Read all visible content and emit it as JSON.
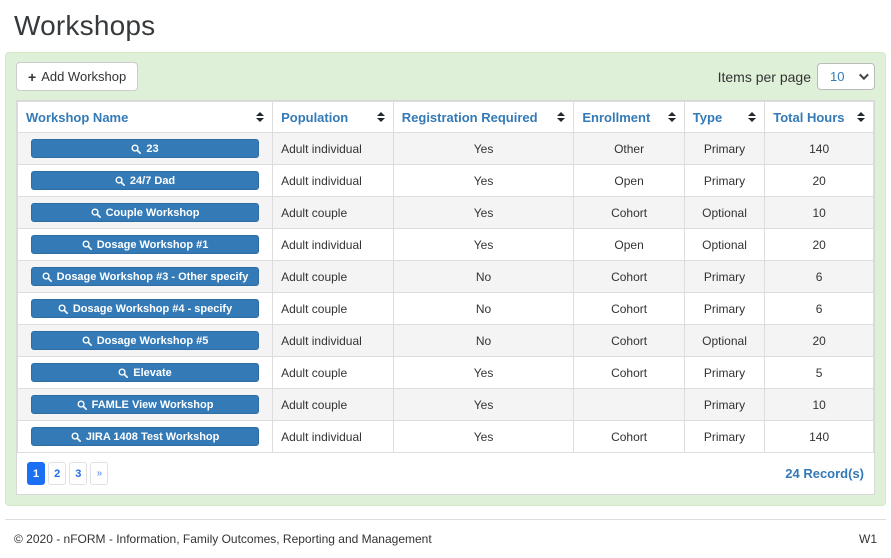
{
  "page": {
    "title": "Workshops"
  },
  "toolbar": {
    "add_button": {
      "icon": "+",
      "label": "Add Workshop"
    },
    "items_per_page": {
      "label": "Items per page",
      "selected": "10"
    }
  },
  "table": {
    "columns": [
      "Workshop Name",
      "Population",
      "Registration Required",
      "Enrollment",
      "Type",
      "Total Hours"
    ],
    "rows": [
      {
        "name": "23",
        "population": "Adult individual",
        "registration_required": "Yes",
        "enrollment": "Other",
        "type": "Primary",
        "total_hours": "140"
      },
      {
        "name": "24/7 Dad",
        "population": "Adult individual",
        "registration_required": "Yes",
        "enrollment": "Open",
        "type": "Primary",
        "total_hours": "20"
      },
      {
        "name": "Couple Workshop",
        "population": "Adult couple",
        "registration_required": "Yes",
        "enrollment": "Cohort",
        "type": "Optional",
        "total_hours": "10"
      },
      {
        "name": "Dosage Workshop #1",
        "population": "Adult individual",
        "registration_required": "Yes",
        "enrollment": "Open",
        "type": "Optional",
        "total_hours": "20"
      },
      {
        "name": "Dosage Workshop #3 - Other specify",
        "population": "Adult couple",
        "registration_required": "No",
        "enrollment": "Cohort",
        "type": "Primary",
        "total_hours": "6"
      },
      {
        "name": "Dosage Workshop #4 - specify",
        "population": "Adult couple",
        "registration_required": "No",
        "enrollment": "Cohort",
        "type": "Primary",
        "total_hours": "6"
      },
      {
        "name": "Dosage Workshop #5",
        "population": "Adult individual",
        "registration_required": "No",
        "enrollment": "Cohort",
        "type": "Optional",
        "total_hours": "20"
      },
      {
        "name": "Elevate",
        "population": "Adult couple",
        "registration_required": "Yes",
        "enrollment": "Cohort",
        "type": "Primary",
        "total_hours": "5"
      },
      {
        "name": "FAMLE View Workshop",
        "population": "Adult couple",
        "registration_required": "Yes",
        "enrollment": "",
        "type": "Primary",
        "total_hours": "10"
      },
      {
        "name": "JIRA 1408 Test Workshop",
        "population": "Adult individual",
        "registration_required": "Yes",
        "enrollment": "Cohort",
        "type": "Primary",
        "total_hours": "140"
      }
    ]
  },
  "pagination": {
    "pages": [
      "1",
      "2",
      "3",
      "»"
    ],
    "active": "1",
    "record_count": "24 Record(s)"
  },
  "footer": {
    "copyright": "© 2020 - nFORM - Information, Family Outcomes, Reporting and Management",
    "version": "W1"
  },
  "icons": {
    "add_workshop": "plus-icon",
    "workshop_link": "search-icon",
    "column_sort": "sort-arrows-icon",
    "items_per_page": "chevron-down-icon"
  },
  "colors": {
    "accent_blue": "#337ab7",
    "pagination_blue": "#1b6ff2",
    "panel_green": "#dff0d8",
    "row_stripe": "#f4f4f4"
  }
}
